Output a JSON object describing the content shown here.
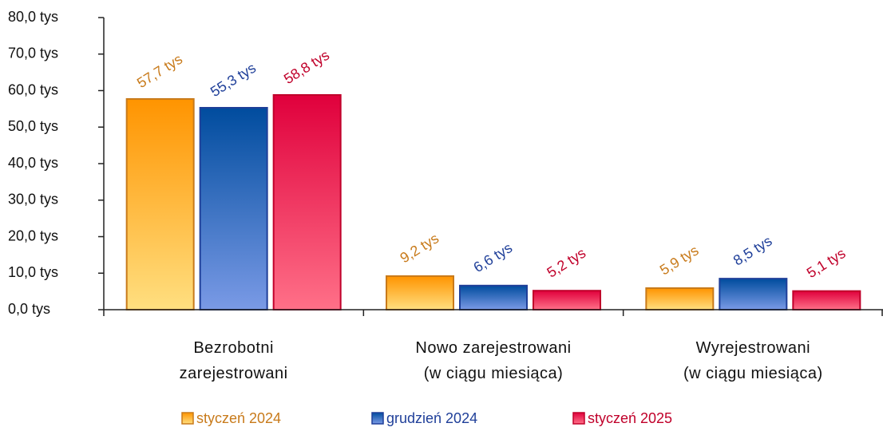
{
  "chart_data": {
    "type": "bar",
    "categories": [
      "Bezrobotni\nzarejestrowani",
      "Nowo zarejestrowani\n(w ciągu miesiąca)",
      "Wyrejestrowani\n(w ciągu miesiąca)"
    ],
    "series": [
      {
        "name": "styczeń 2024",
        "color": "#c87a1a",
        "values": [
          57.7,
          9.2,
          5.9
        ],
        "value_labels": [
          "57,7 tys",
          "9,2 tys",
          "5,9 tys"
        ]
      },
      {
        "name": "grudzień 2024",
        "color": "#1f3f99",
        "values": [
          55.3,
          6.6,
          8.5
        ],
        "value_labels": [
          "55,3 tys",
          "6,6 tys",
          "8,5 tys"
        ]
      },
      {
        "name": "styczeń 2025",
        "color": "#c0002a",
        "values": [
          58.8,
          5.2,
          5.1
        ],
        "value_labels": [
          "58,8 tys",
          "5,2 tys",
          "5,1 tys"
        ]
      }
    ],
    "ylim": [
      0,
      80
    ],
    "yticks": [
      {
        "value": 0,
        "label": "0,0 tys"
      },
      {
        "value": 10,
        "label": "10,0 tys"
      },
      {
        "value": 20,
        "label": "20,0 tys"
      },
      {
        "value": 30,
        "label": "30,0 tys"
      },
      {
        "value": 40,
        "label": "40,0 tys"
      },
      {
        "value": 50,
        "label": "50,0 tys"
      },
      {
        "value": 60,
        "label": "60,0 tys"
      },
      {
        "value": 70,
        "label": "70,0 tys"
      },
      {
        "value": 80,
        "label": "80,0 tys"
      }
    ],
    "grid": false,
    "legend": "bottom"
  }
}
